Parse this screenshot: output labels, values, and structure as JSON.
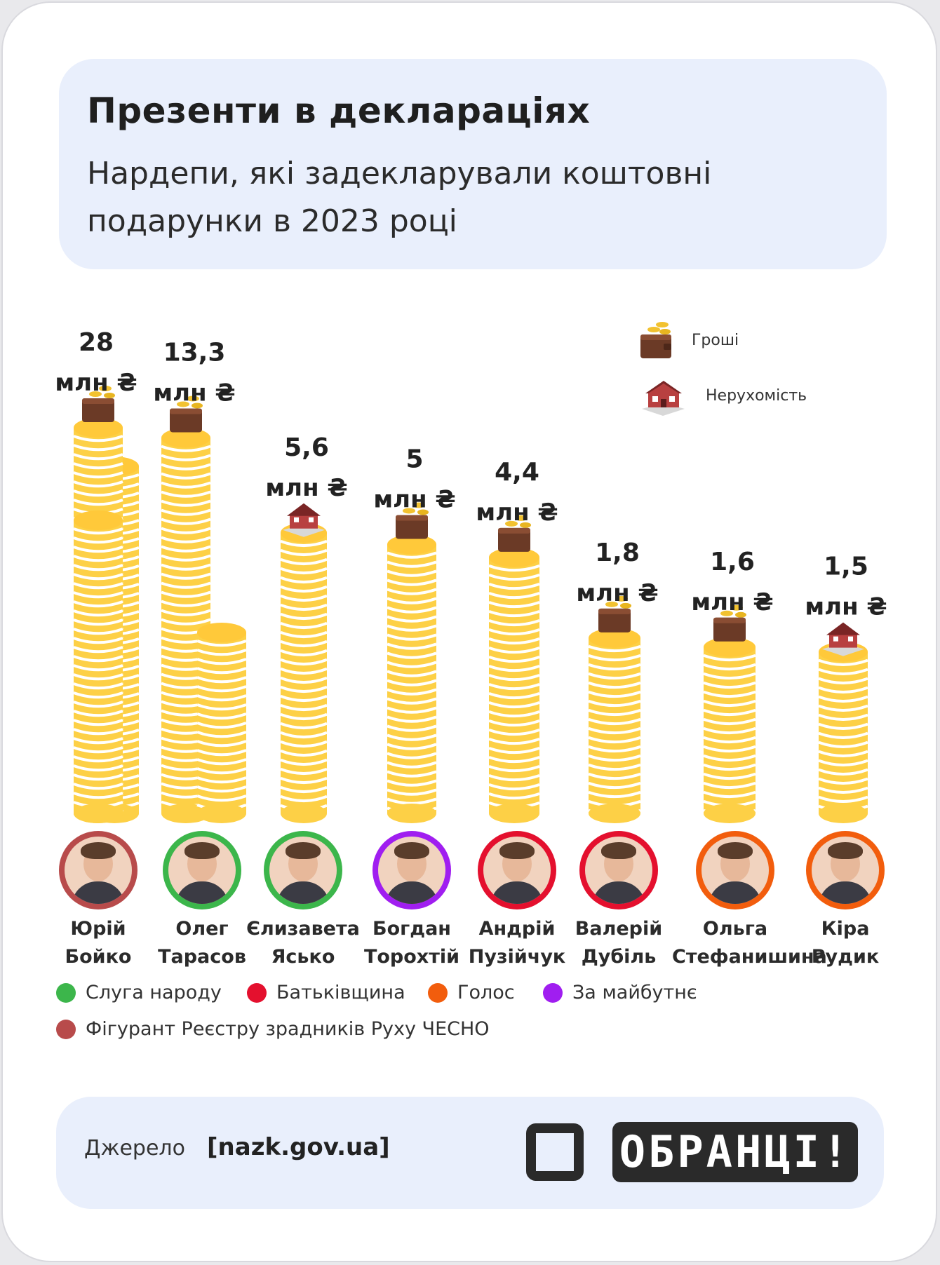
{
  "header": {
    "title": "Презенти в деклараціях",
    "subtitle": "Нардепи, які задекларували коштовні подарунки в 2023 році"
  },
  "legend_top": {
    "money": {
      "label": "Гроші",
      "icon": "wallet-icon"
    },
    "property": {
      "label": "Нерухомість",
      "icon": "house-icon"
    }
  },
  "colors": {
    "coin": "#fdd046",
    "coin_stripe": "#ffffff",
    "servant": "#3cb64b",
    "batkivshchyna": "#e4102e",
    "holos": "#f25d0d",
    "future": "#a01ef0",
    "traitor": "#b84b4b"
  },
  "chart_data": {
    "type": "bar",
    "title": "Презенти в деклараціях",
    "unit": "млн ₴",
    "categories": [
      "Юрій Бойко",
      "Олег Тарасов",
      "Єлизавета Ясько",
      "Богдан Торохтій",
      "Андрій Пузійчук",
      "Валерій Дубіль",
      "Ольга Стефанишина",
      "Кіра Рудик"
    ],
    "values": [
      28,
      13.3,
      5.6,
      5,
      4.4,
      1.8,
      1.6,
      1.5
    ],
    "value_labels": [
      "28",
      "13,3",
      "5,6",
      "5",
      "4,4",
      "1,8",
      "1,6",
      "1,5"
    ],
    "gift_type": [
      "money",
      "money",
      "property",
      "money",
      "money",
      "money",
      "money",
      "property"
    ]
  },
  "people": [
    {
      "first": "Юрій",
      "last": "Бойко",
      "party": "traitor"
    },
    {
      "first": "Олег",
      "last": "Тарасов",
      "party": "servant"
    },
    {
      "first": "Єлизавета",
      "last": "Ясько",
      "party": "servant"
    },
    {
      "first": "Богдан",
      "last": "Торохтій",
      "party": "future"
    },
    {
      "first": "Андрій",
      "last": "Пузійчук",
      "party": "batkivshchyna"
    },
    {
      "first": "Валерій",
      "last": "Дубіль",
      "party": "batkivshchyna"
    },
    {
      "first": "Ольга",
      "last": "Стефанишина",
      "party": "holos"
    },
    {
      "first": "Кіра",
      "last": "Рудик",
      "party": "holos"
    }
  ],
  "party_legend": {
    "servant": "Слуга народу",
    "batkivshchyna": "Батьківщина",
    "holos": "Голос",
    "future": "За майбутнє",
    "traitor": "Фігурант Реєстру зрадників Руху ЧЕСНО"
  },
  "footer": {
    "source_label": "Джерело",
    "source_link": "[nazk.gov.ua]",
    "logo_text": "ОБРАНЦІ!"
  }
}
